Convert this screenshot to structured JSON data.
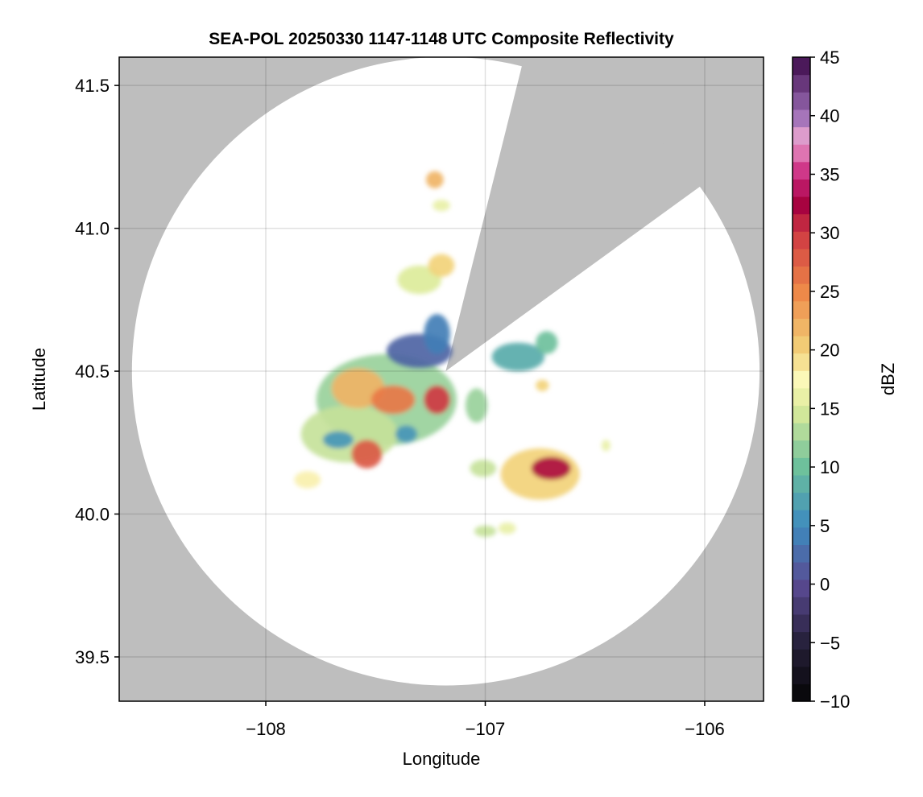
{
  "chart_data": {
    "type": "heatmap",
    "title": "SEA-POL 20250330 1147-1148 UTC Composite Reflectivity",
    "xlabel": "Longitude",
    "ylabel": "Latitude",
    "xlim": [
      -108.668,
      -105.732
    ],
    "ylim": [
      39.345,
      41.599
    ],
    "xticks": [
      -108,
      -107,
      -106
    ],
    "xtick_labels": [
      "−108",
      "−107",
      "−106"
    ],
    "yticks": [
      39.5,
      40.0,
      40.5,
      41.0,
      41.5
    ],
    "ytick_labels": [
      "39.5",
      "40.0",
      "40.5",
      "41.0",
      "41.5"
    ],
    "grid": true,
    "colorbar": {
      "label": "dBZ",
      "range": [
        -10,
        45
      ],
      "ticks": [
        -10,
        -5,
        0,
        5,
        10,
        15,
        20,
        25,
        30,
        35,
        40,
        45
      ],
      "tick_labels": [
        "−10",
        "−5",
        "0",
        "5",
        "10",
        "15",
        "20",
        "25",
        "30",
        "35",
        "40",
        "45"
      ]
    },
    "no_data_color": "#bebebe",
    "radar": {
      "center_lon": -107.18,
      "center_lat": 40.5,
      "range_lon_deg": 1.43,
      "range_lat_deg": 1.1,
      "blocked_sector_azimuth_deg": [
        14,
        54
      ]
    },
    "echo_cells": [
      {
        "lon": -107.45,
        "lat": 40.4,
        "rlon": 0.32,
        "rlat": 0.16,
        "dbz": 12
      },
      {
        "lon": -107.62,
        "lat": 40.28,
        "rlon": 0.22,
        "rlat": 0.1,
        "dbz": 14
      },
      {
        "lon": -107.3,
        "lat": 40.57,
        "rlon": 0.15,
        "rlat": 0.06,
        "dbz": 2
      },
      {
        "lon": -107.22,
        "lat": 40.63,
        "rlon": 0.06,
        "rlat": 0.07,
        "dbz": 4
      },
      {
        "lon": -107.67,
        "lat": 40.26,
        "rlon": 0.07,
        "rlat": 0.03,
        "dbz": 6
      },
      {
        "lon": -107.36,
        "lat": 40.28,
        "rlon": 0.05,
        "rlat": 0.03,
        "dbz": 6
      },
      {
        "lon": -107.58,
        "lat": 40.44,
        "rlon": 0.12,
        "rlat": 0.07,
        "dbz": 22
      },
      {
        "lon": -107.42,
        "lat": 40.4,
        "rlon": 0.1,
        "rlat": 0.05,
        "dbz": 26
      },
      {
        "lon": -107.54,
        "lat": 40.21,
        "rlon": 0.07,
        "rlat": 0.05,
        "dbz": 28
      },
      {
        "lon": -107.22,
        "lat": 40.4,
        "rlon": 0.06,
        "rlat": 0.05,
        "dbz": 30
      },
      {
        "lon": -107.04,
        "lat": 40.38,
        "rlon": 0.05,
        "rlat": 0.06,
        "dbz": 12
      },
      {
        "lon": -107.81,
        "lat": 40.12,
        "rlon": 0.06,
        "rlat": 0.03,
        "dbz": 18
      },
      {
        "lon": -107.23,
        "lat": 41.17,
        "rlon": 0.04,
        "rlat": 0.03,
        "dbz": 22
      },
      {
        "lon": -107.2,
        "lat": 41.08,
        "rlon": 0.04,
        "rlat": 0.02,
        "dbz": 16
      },
      {
        "lon": -107.3,
        "lat": 40.82,
        "rlon": 0.1,
        "rlat": 0.05,
        "dbz": 15
      },
      {
        "lon": -107.2,
        "lat": 40.87,
        "rlon": 0.06,
        "rlat": 0.04,
        "dbz": 20
      },
      {
        "lon": -106.85,
        "lat": 40.55,
        "rlon": 0.12,
        "rlat": 0.05,
        "dbz": 8
      },
      {
        "lon": -106.72,
        "lat": 40.6,
        "rlon": 0.05,
        "rlat": 0.04,
        "dbz": 10
      },
      {
        "lon": -106.74,
        "lat": 40.45,
        "rlon": 0.03,
        "rlat": 0.02,
        "dbz": 20
      },
      {
        "lon": -106.75,
        "lat": 40.14,
        "rlon": 0.18,
        "rlat": 0.09,
        "dbz": 20
      },
      {
        "lon": -106.7,
        "lat": 40.16,
        "rlon": 0.09,
        "rlat": 0.04,
        "dbz": 32
      },
      {
        "lon": -107.01,
        "lat": 40.16,
        "rlon": 0.06,
        "rlat": 0.03,
        "dbz": 14
      },
      {
        "lon": -107.0,
        "lat": 39.94,
        "rlon": 0.05,
        "rlat": 0.02,
        "dbz": 14
      },
      {
        "lon": -106.9,
        "lat": 39.95,
        "rlon": 0.04,
        "rlat": 0.02,
        "dbz": 16
      },
      {
        "lon": -106.45,
        "lat": 40.24,
        "rlon": 0.02,
        "rlat": 0.02,
        "dbz": 16
      }
    ]
  }
}
